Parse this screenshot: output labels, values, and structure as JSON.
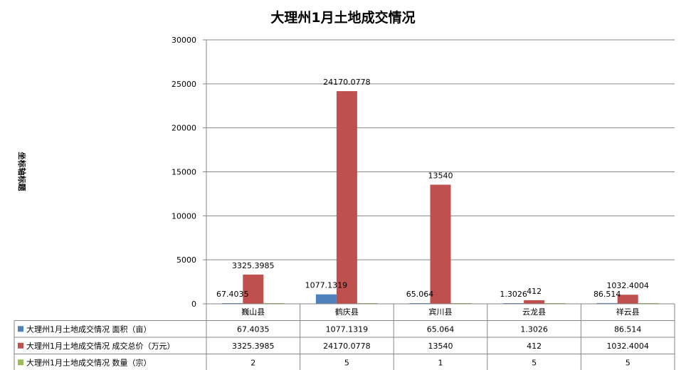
{
  "chart_data": {
    "type": "bar",
    "title": "大理州1月土地成交情况",
    "ylabel": "坐标轴标题",
    "xlabel": "",
    "ylim": [
      0,
      30000
    ],
    "yticks": [
      "0",
      "5000",
      "10000",
      "15000",
      "20000",
      "25000",
      "30000"
    ],
    "categories": [
      "巍山县",
      "鹤庆县",
      "宾川县",
      "云龙县",
      "祥云县"
    ],
    "series": [
      {
        "name": "大理州1月土地成交情况 面积（亩）",
        "color": "#4F81BD",
        "values": [
          67.4035,
          1077.1319,
          65.064,
          1.3026,
          86.514
        ],
        "labels": [
          "67.4035",
          "1077.1319",
          "65.064",
          "1.3026",
          "86.514"
        ],
        "table": [
          "67.4035",
          "1077.1319",
          "65.064",
          "1.3026",
          "86.514"
        ]
      },
      {
        "name": "大理州1月土地成交情况 成交总价（万元）",
        "color": "#C0504D",
        "values": [
          3325.3985,
          24170.0778,
          13540,
          412,
          1032.4004
        ],
        "labels": [
          "3325.3985",
          "24170.0778",
          "13540",
          "412",
          "1032.4004"
        ],
        "table": [
          "3325.3985",
          "24170.0778",
          "13540",
          "412",
          "1032.4004"
        ]
      },
      {
        "name": "大理州1月土地成交情况 数量（宗）",
        "color": "#9BBB59",
        "values": [
          2,
          5,
          1,
          5,
          5
        ],
        "labels": [
          "",
          "",
          "",
          "",
          ""
        ],
        "table": [
          "2",
          "5",
          "1",
          "5",
          "5"
        ]
      }
    ],
    "grid": true,
    "legend": "data-table"
  }
}
